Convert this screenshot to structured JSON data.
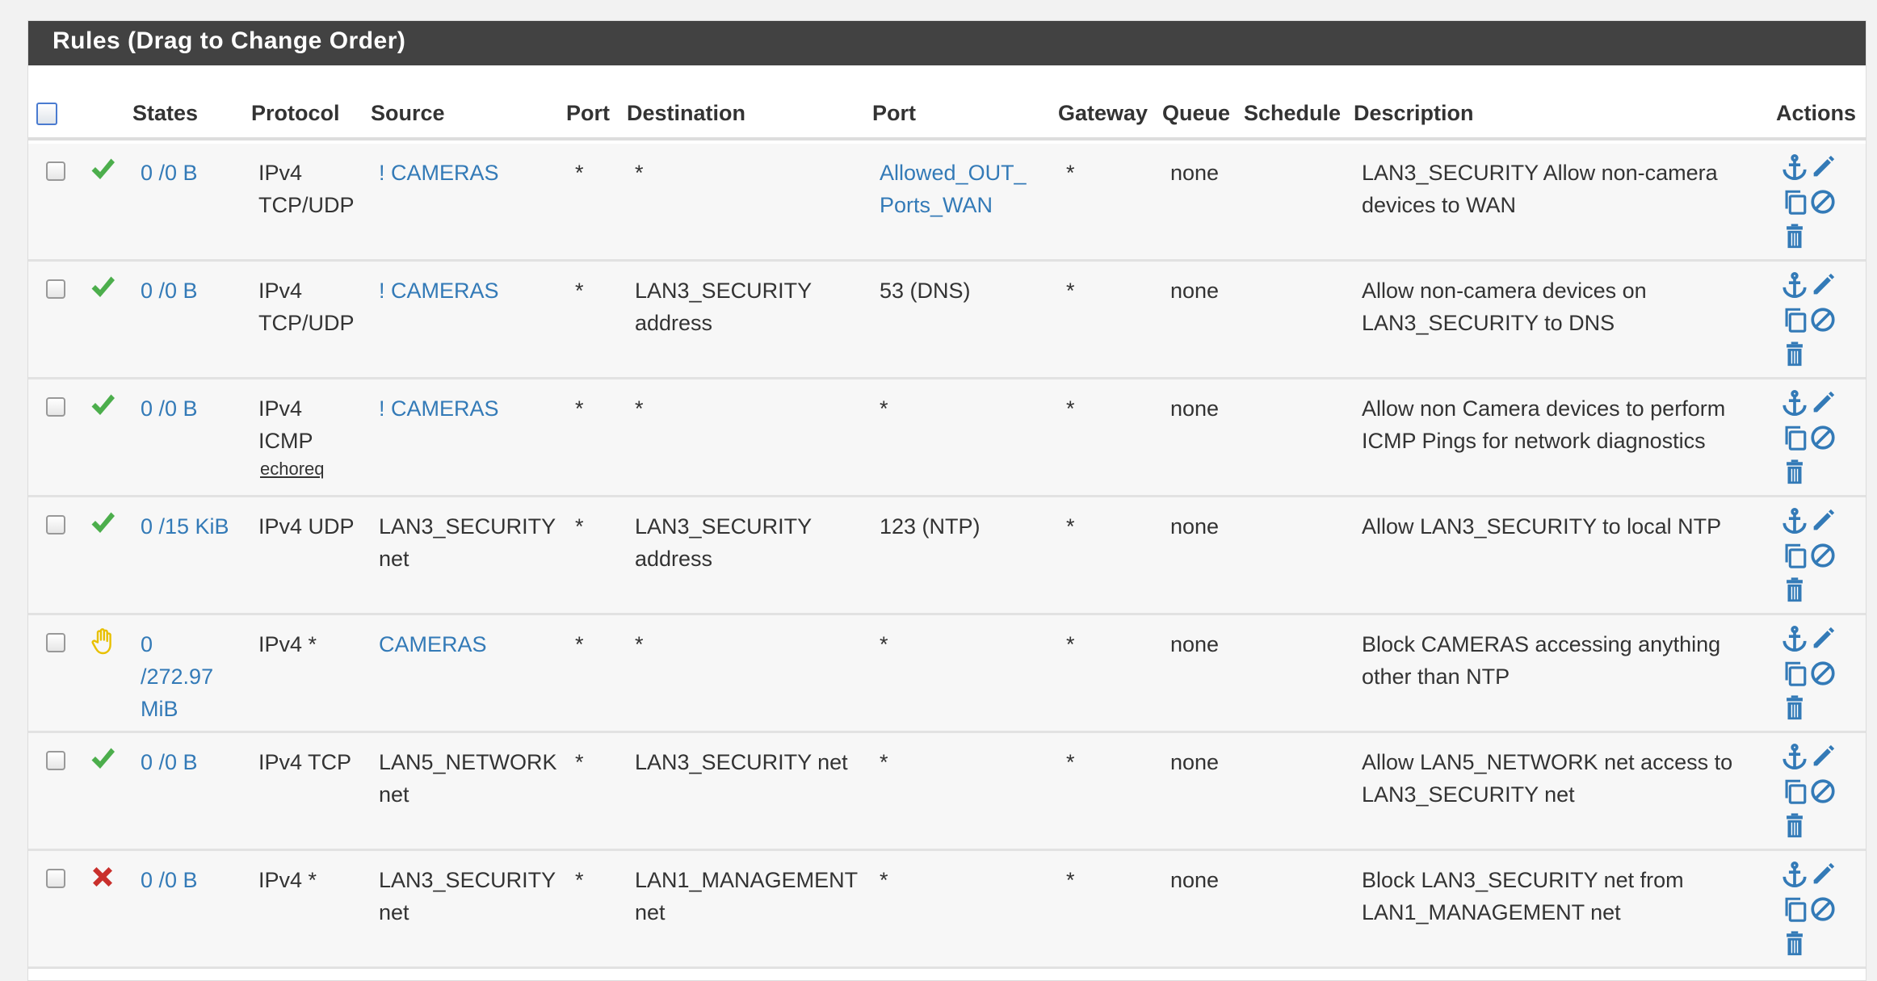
{
  "panel": {
    "title": "Rules (Drag to Change Order)"
  },
  "headers": {
    "states": "States",
    "protocol": "Protocol",
    "source": "Source",
    "port": "Port",
    "destination": "Destination",
    "dport": "Port",
    "gateway": "Gateway",
    "queue": "Queue",
    "schedule": "Schedule",
    "description": "Description",
    "actions": "Actions"
  },
  "colors": {
    "link": "#337ab7",
    "pass": "#4cae4c",
    "block": "#e8c000",
    "reject": "#c9302c",
    "header_bar": "#424242"
  },
  "rules": [
    {
      "status": "pass-check-icon",
      "states": "0 /0 B",
      "protocol": "IPv4\nTCP/UDP",
      "protocol_sub": "",
      "source": "! CAMERAS",
      "source_link": true,
      "port": "*",
      "destination": "*",
      "dest_link": false,
      "dport": "Allowed_OUT_\nPorts_WAN",
      "dport_link": true,
      "gateway": "*",
      "queue": "none",
      "schedule": "",
      "description": "LAN3_SECURITY Allow non-camera\ndevices to WAN"
    },
    {
      "status": "pass-check-icon",
      "states": "0 /0 B",
      "protocol": "IPv4\nTCP/UDP",
      "protocol_sub": "",
      "source": "! CAMERAS",
      "source_link": true,
      "port": "*",
      "destination": "LAN3_SECURITY\naddress",
      "dest_link": false,
      "dport": "53 (DNS)",
      "dport_link": false,
      "gateway": "*",
      "queue": "none",
      "schedule": "",
      "description": "Allow non-camera devices on\nLAN3_SECURITY to DNS"
    },
    {
      "status": "pass-check-icon",
      "states": "0 /0 B",
      "protocol": "IPv4\nICMP",
      "protocol_sub": "echoreq",
      "source": "! CAMERAS",
      "source_link": true,
      "port": "*",
      "destination": "*",
      "dest_link": false,
      "dport": "*",
      "dport_link": false,
      "gateway": "*",
      "queue": "none",
      "schedule": "",
      "description": "Allow non Camera devices to perform\nICMP Pings for network diagnostics"
    },
    {
      "status": "pass-check-icon",
      "states": "0 /15 KiB",
      "protocol": "IPv4 UDP",
      "protocol_sub": "",
      "source": "LAN3_SECURITY\nnet",
      "source_link": false,
      "port": "*",
      "destination": "LAN3_SECURITY\naddress",
      "dest_link": false,
      "dport": "123 (NTP)",
      "dport_link": false,
      "gateway": "*",
      "queue": "none",
      "schedule": "",
      "description": "Allow LAN3_SECURITY to local NTP"
    },
    {
      "status": "block-hand-icon",
      "states": "0\n/272.97\nMiB",
      "protocol": "IPv4 *",
      "protocol_sub": "",
      "source": "CAMERAS",
      "source_link": true,
      "port": "*",
      "destination": "*",
      "dest_link": false,
      "dport": "*",
      "dport_link": false,
      "gateway": "*",
      "queue": "none",
      "schedule": "",
      "description": "Block CAMERAS accessing anything\nother than NTP"
    },
    {
      "status": "pass-check-icon",
      "states": "0 /0 B",
      "protocol": "IPv4 TCP",
      "protocol_sub": "",
      "source": "LAN5_NETWORK\nnet",
      "source_link": false,
      "port": "*",
      "destination": "LAN3_SECURITY net",
      "dest_link": false,
      "dport": "*",
      "dport_link": false,
      "gateway": "*",
      "queue": "none",
      "schedule": "",
      "description": "Allow LAN5_NETWORK net access to\nLAN3_SECURITY net"
    },
    {
      "status": "reject-x-icon",
      "states": "0 /0 B",
      "protocol": "IPv4 *",
      "protocol_sub": "",
      "source": "LAN3_SECURITY\nnet",
      "source_link": false,
      "port": "*",
      "destination": "LAN1_MANAGEMENT\nnet",
      "dest_link": false,
      "dport": "*",
      "dport_link": false,
      "gateway": "*",
      "queue": "none",
      "schedule": "",
      "description": "Block LAN3_SECURITY net from\nLAN1_MANAGEMENT net"
    }
  ]
}
